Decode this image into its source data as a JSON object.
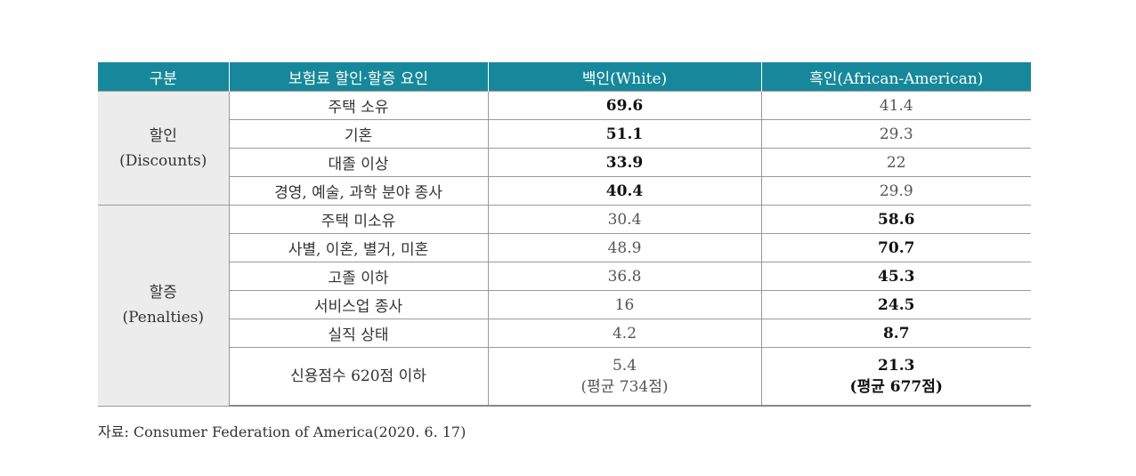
{
  "table": {
    "header": [
      "구분",
      "보험료 할인·할증 요인",
      "백인(White)",
      "흑인(African-American)"
    ],
    "groups": [
      {
        "label": "할인",
        "sublabel": "(Discounts)",
        "rows": [
          {
            "factor": "주택 소유",
            "white": 69.6,
            "black": 41.4
          },
          {
            "factor": "기혼",
            "white": 51.1,
            "black": 29.3
          },
          {
            "factor": "대졸 이상",
            "white": 33.9,
            "black": 22.0
          },
          {
            "factor": "경영, 예술, 과학 분야 종사",
            "white": 40.4,
            "black": 29.9
          }
        ]
      },
      {
        "label": "할증",
        "sublabel": "(Penalties)",
        "rows": [
          {
            "factor": "주택 미소유",
            "white": 30.4,
            "black": 58.6
          },
          {
            "factor": "사별, 이혼, 별거, 미혼",
            "white": 48.9,
            "black": 70.7
          },
          {
            "factor": "고졸 이하",
            "white": 36.8,
            "black": 45.3
          },
          {
            "factor": "서비스업 종사",
            "white": 16.0,
            "black": 24.5
          },
          {
            "factor": "실직 상태",
            "white": 4.2,
            "black": 8.7
          },
          {
            "factor": "신용점수 620점 이하",
            "white": 5.4,
            "black": 21.3,
            "white_note": "(평균 734점)",
            "black_note": "(평균 677점)"
          }
        ]
      }
    ]
  },
  "source": "자료: Consumer Federation of America(2020. 6. 17)"
}
